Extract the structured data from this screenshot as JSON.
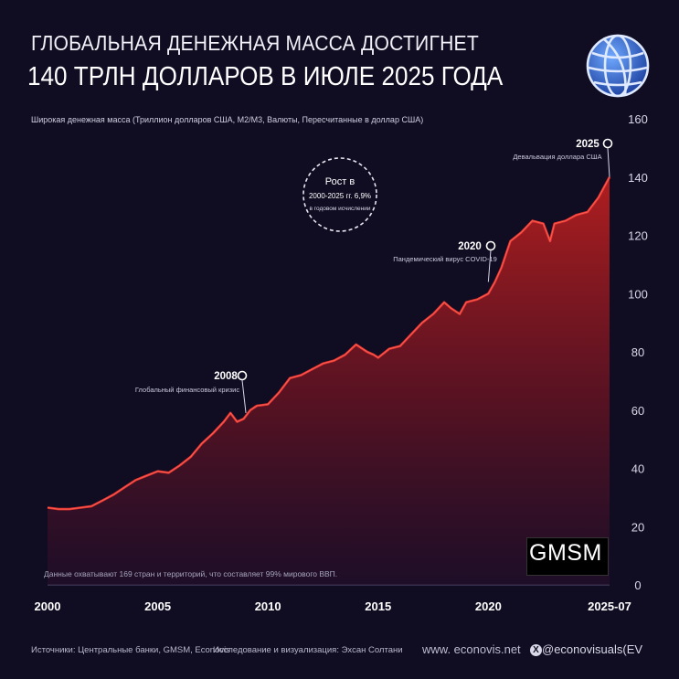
{
  "header": {
    "title_line1": "ГЛОБАЛЬНАЯ ДЕНЕЖНАЯ МАССА ДОСТИГНЕТ",
    "title_line2": "140 ТРЛН ДОЛЛАРОВ В ИЮЛЕ 2025 ГОДА",
    "subtitle": "Широкая денежная масса (Триллион долларов США, M2/M3, Валюты, Пересчитанные в доллар США)"
  },
  "footer": {
    "sources": "Источники: Центральные банки, GMSM, Econovis",
    "research": "Исследование и визуализация: Эхсан Солтани",
    "website": "www. econovis.net",
    "handle": "@econovisuals",
    "handle_logo": "(EV",
    "coverage_note": "Данные охватывают 169 стран и территорий, что составляет 99% мирового ВВП.",
    "watermark": "GMSM"
  },
  "colors": {
    "background": "#100c22",
    "line": "#e8332e",
    "area_top": "#b01e1e",
    "grid": "#3a3458"
  },
  "chart_data": {
    "type": "area",
    "xlabel": "",
    "ylabel": "",
    "xlim": [
      2000,
      2025.5
    ],
    "ylim": [
      0,
      160
    ],
    "x_ticks": [
      {
        "value": 2000,
        "label": "2000"
      },
      {
        "value": 2005,
        "label": "2005"
      },
      {
        "value": 2010,
        "label": "2010"
      },
      {
        "value": 2015,
        "label": "2015"
      },
      {
        "value": 2020,
        "label": "2020"
      },
      {
        "value": 2025.5,
        "label": "2025-07"
      }
    ],
    "y_ticks": [
      0,
      20,
      40,
      60,
      80,
      100,
      120,
      140,
      160
    ],
    "y_axis_side": "right",
    "grid": false,
    "series": [
      {
        "x": [
          2000,
          2000.5,
          2001,
          2001.5,
          2002,
          2002.5,
          2003,
          2003.5,
          2004,
          2004.5,
          2005,
          2005.5,
          2006,
          2006.5,
          2007,
          2007.5,
          2008,
          2008.3,
          2008.6,
          2008.9,
          2009.2,
          2009.5,
          2010,
          2010.5,
          2011,
          2011.5,
          2012,
          2012.5,
          2013,
          2013.5,
          2014,
          2014.5,
          2014.8,
          2015,
          2015.5,
          2016,
          2016.5,
          2017,
          2017.5,
          2018,
          2018.3,
          2018.7,
          2019,
          2019.5,
          2020,
          2020.3,
          2020.6,
          2021,
          2021.5,
          2022,
          2022.5,
          2022.8,
          2023,
          2023.5,
          2024,
          2024.5,
          2025,
          2025.5
        ],
        "values": [
          26.5,
          26,
          26,
          26.5,
          27,
          29,
          31,
          33.5,
          36,
          37.5,
          39,
          38.5,
          41,
          44,
          48.5,
          52,
          56,
          59,
          56,
          57,
          60,
          61.5,
          62,
          66,
          71,
          72,
          74,
          76,
          77,
          79,
          82.5,
          80,
          79,
          78,
          81,
          82,
          86,
          90,
          93,
          97,
          95,
          93,
          97,
          98,
          100,
          104,
          109,
          118,
          121,
          125,
          124,
          118,
          124,
          125,
          127,
          128,
          133,
          140
        ]
      }
    ],
    "annotations": [
      {
        "year_label": "2008",
        "text": "Глобальный финансовый кризис",
        "x": 2009,
        "y": 59
      },
      {
        "year_label": "2020",
        "text": "Пандемический вирус COVID-19",
        "x": 2020,
        "y": 104
      },
      {
        "year_label": "2025",
        "text": "Девальвация доллара США",
        "x": 2025.5,
        "y": 140
      }
    ],
    "callout": {
      "line1": "Рост в",
      "line2": "2000-2025 гг. 6,9%",
      "line3": "в годовом исчислении"
    }
  }
}
